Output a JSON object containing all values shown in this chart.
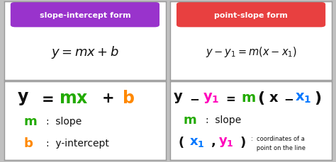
{
  "figsize": [
    4.74,
    2.3
  ],
  "dpi": 100,
  "bg_color": "#c0c0c0",
  "panel_bg": "#ffffff",
  "purple": "#9933cc",
  "red": "#e84040",
  "green": "#22aa00",
  "orange": "#ff8800",
  "magenta": "#ff00bb",
  "blue": "#0077ff",
  "black": "#111111",
  "label1": "slope-intercept form",
  "label2": "point-slope form"
}
